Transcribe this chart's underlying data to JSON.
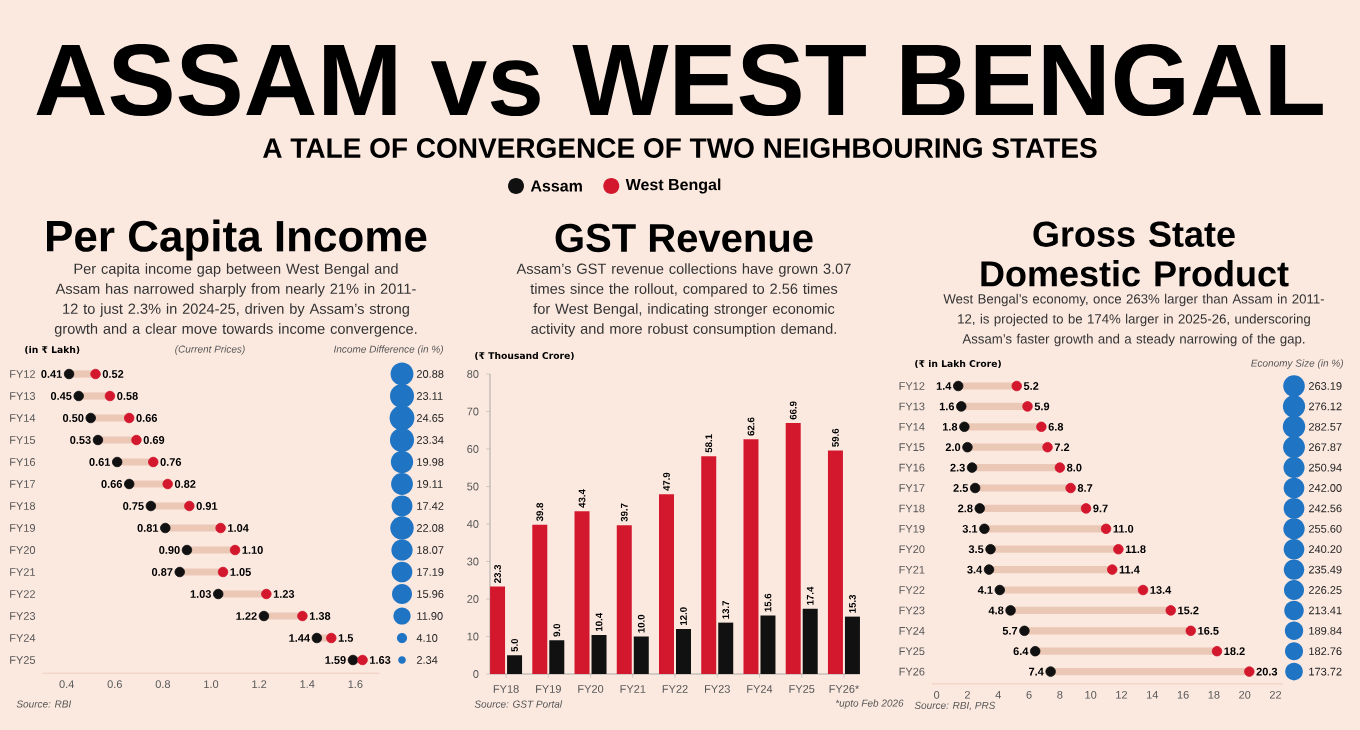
{
  "chart_data": [
    {
      "type": "other",
      "title": "ASSAM vs WEST BENGAL",
      "subtitle": "A TALE OF CONVERGENCE OF TWO NEIGHBOURING STATES",
      "legend": "bottom",
      "series": [
        {
          "name": "Assam",
          "color": "#111111"
        },
        {
          "name": "West Bengal",
          "color": "#d3182e"
        }
      ]
    },
    {
      "type": "scatter",
      "orientation": "horizontal",
      "title": "Per Capita Income",
      "subtitle": "Per capita income gap between West Bengal and Assam has narrowed sharply from nearly 21% in 2011-12 to just 2.3% in 2024-25, driven by Assam’s strong growth and a clear move towards income convergence.",
      "xlabel": "(in ₹ Lakh)",
      "annotations": [
        "(Current Prices)",
        "Source: RBI"
      ],
      "marker": "circle",
      "categories": [
        "FY12",
        "FY13",
        "FY14",
        "FY15",
        "FY16",
        "FY17",
        "FY18",
        "FY19",
        "FY20",
        "FY21",
        "FY22",
        "FY23",
        "FY24",
        "FY25"
      ],
      "xlim": [
        0.3,
        1.7
      ],
      "xticks": [
        0.4,
        0.6,
        0.8,
        {
          "value": 1,
          "label": "1.0"
        },
        1.2,
        1.4,
        1.6
      ],
      "series": [
        {
          "color": "#111111",
          "values": [
            0.41,
            0.45,
            0.5,
            0.53,
            0.61,
            0.66,
            0.75,
            0.81,
            0.9,
            0.87,
            1.03,
            1.22,
            1.44,
            1.59
          ],
          "value_labels": [
            "0.41",
            "0.45",
            "0.50",
            "0.53",
            "0.61",
            "0.66",
            "0.75",
            "0.81",
            "0.90",
            "0.87",
            "1.03",
            "1.22",
            "1.44",
            "1.59"
          ]
        },
        {
          "color": "#d3182e",
          "values": [
            0.52,
            0.58,
            0.66,
            0.69,
            0.76,
            0.82,
            0.91,
            1.04,
            1.1,
            1.05,
            1.23,
            1.38,
            1.5,
            1.63
          ],
          "value_labels": [
            "0.52",
            "0.58",
            "0.66",
            "0.69",
            "0.76",
            "0.82",
            "0.91",
            "1.04",
            "1.10",
            "1.05",
            "1.23",
            "1.38",
            "1.5",
            "1.63"
          ]
        }
      ]
    },
    {
      "type": "other",
      "title": "Income Difference (in %)",
      "color": "#1f74c4",
      "values": [
        20.88,
        23.11,
        24.65,
        23.34,
        19.98,
        19.11,
        17.42,
        22.08,
        18.07,
        17.19,
        15.96,
        11.9,
        4.1,
        2.34
      ],
      "value_labels": [
        "20.88",
        "23.11",
        "24.65",
        "23.34",
        "19.98",
        "19.11",
        "17.42",
        "22.08",
        "18.07",
        "17.19",
        "15.96",
        "11.90",
        "4.10",
        "2.34"
      ]
    },
    {
      "type": "bar",
      "title": "GST Revenue",
      "subtitle": "Assam’s GST revenue collections have grown 3.07 times since the rollout, compared to 2.56 times for West Bengal, indicating stronger economic activity and more robust consumption demand.",
      "ylabel": "(₹ Thousand Crore)",
      "annotations": [
        "Source: GST Portal",
        "*upto Feb 2026"
      ],
      "categories": [
        "FY18",
        "FY19",
        "FY20",
        "FY21",
        "FY22",
        "FY23",
        "FY24",
        "FY25",
        "FY26*"
      ],
      "ylim": [
        0,
        80
      ],
      "yticks": [
        0,
        10,
        20,
        30,
        40,
        50,
        60,
        70,
        80
      ],
      "series": [
        {
          "color": "#d3182e",
          "values": [
            23.3,
            39.8,
            43.4,
            39.7,
            47.9,
            58.1,
            62.6,
            66.9,
            59.6
          ],
          "value_labels": [
            "23.3",
            "39.8",
            "43.4",
            "39.7",
            "47.9",
            "58.1",
            "62.6",
            "66.9",
            "59.6"
          ]
        },
        {
          "color": "#111111",
          "values": [
            5.0,
            9.0,
            10.4,
            10.0,
            12.0,
            13.7,
            15.6,
            17.4,
            15.3
          ],
          "value_labels": [
            "5.0",
            "9.0",
            "10.4",
            "10.0",
            "12.0",
            "13.7",
            "15.6",
            "17.4",
            "15.3"
          ]
        }
      ]
    },
    {
      "type": "scatter",
      "orientation": "horizontal",
      "title": "Gross State Domestic Product",
      "subtitle": "West Bengal’s economy, once 263% larger than Assam in 2011-12, is projected to be 174% larger in 2025-26, underscoring Assam’s faster growth and a steady narrowing of the gap.",
      "xlabel": "(₹ in Lakh Crore)",
      "annotations": [
        "Source: RBI, PRS"
      ],
      "marker": "circle",
      "categories": [
        "FY12",
        "FY13",
        "FY14",
        "FY15",
        "FY16",
        "FY17",
        "FY18",
        "FY19",
        "FY20",
        "FY21",
        "FY22",
        "FY23",
        "FY24",
        "FY25",
        "FY26"
      ],
      "xlim": [
        -0.3,
        22.5
      ],
      "xticks": [
        0,
        2,
        4,
        6,
        8,
        10,
        12,
        14,
        16,
        18,
        20,
        22
      ],
      "series": [
        {
          "color": "#111111",
          "values": [
            1.4,
            1.6,
            1.8,
            2.0,
            2.3,
            2.5,
            2.8,
            3.1,
            3.5,
            3.4,
            4.1,
            4.8,
            5.7,
            6.4,
            7.4
          ],
          "value_labels": [
            "1.4",
            "1.6",
            "1.8",
            "2.0",
            "2.3",
            "2.5",
            "2.8",
            "3.1",
            "3.5",
            "3.4",
            "4.1",
            "4.8",
            "5.7",
            "6.4",
            "7.4"
          ]
        },
        {
          "color": "#d3182e",
          "values": [
            5.2,
            5.9,
            6.8,
            7.2,
            8.0,
            8.7,
            9.7,
            11.0,
            11.8,
            11.4,
            13.4,
            15.2,
            16.5,
            18.2,
            20.3
          ],
          "value_labels": [
            "5.2",
            "5.9",
            "6.8",
            "7.2",
            "8.0",
            "8.7",
            "9.7",
            "11.0",
            "11.8",
            "11.4",
            "13.4",
            "15.2",
            "16.5",
            "18.2",
            "20.3"
          ]
        }
      ]
    },
    {
      "type": "other",
      "title": "Economy Size (in %)",
      "color": "#1f74c4",
      "values": [
        263.19,
        276.12,
        282.57,
        267.87,
        250.94,
        242.0,
        242.56,
        255.6,
        240.2,
        235.49,
        226.25,
        213.41,
        189.84,
        182.76,
        173.72
      ],
      "value_labels": [
        "263.19",
        "276.12",
        "282.57",
        "267.87",
        "250.94",
        "242.00",
        "242.56",
        "255.60",
        "240.20",
        "235.49",
        "226.25",
        "213.41",
        "189.84",
        "182.76",
        "173.72"
      ]
    }
  ]
}
